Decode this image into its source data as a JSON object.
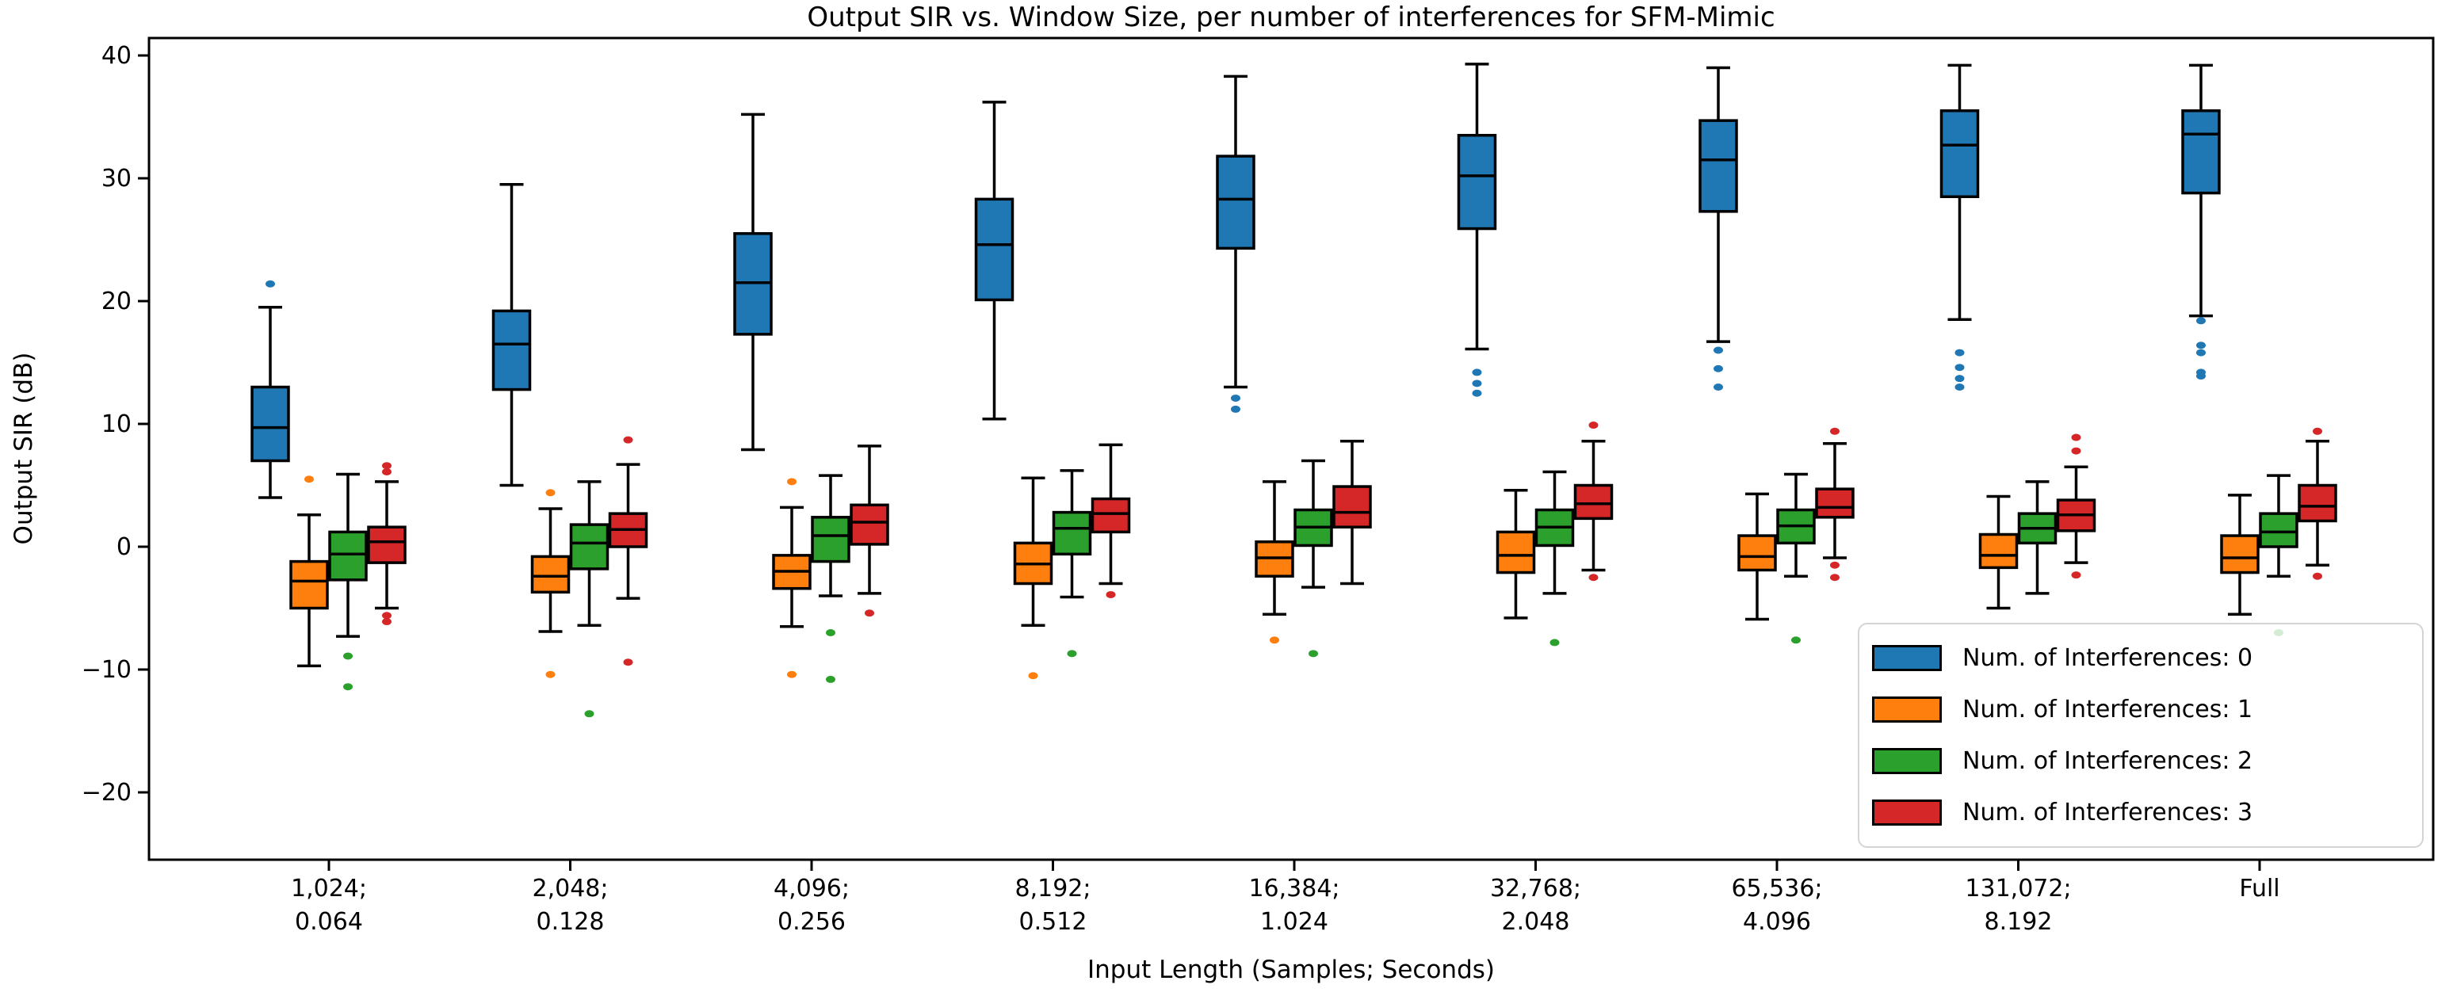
{
  "chart_data": {
    "type": "box",
    "title": "Output SIR vs. Window Size, per number of interferences for SFM-Mimic",
    "xlabel": "Input Length (Samples; Seconds)",
    "ylabel": "Output SIR (dB)",
    "ylim": [
      -25.5,
      41.4
    ],
    "grid": false,
    "legend_position": "lower right",
    "yticks": [
      {
        "value": 40,
        "label": "40"
      },
      {
        "value": 30,
        "label": "30"
      },
      {
        "value": 20,
        "label": "20"
      },
      {
        "value": 10,
        "label": "10"
      },
      {
        "value": 0,
        "label": "0"
      },
      {
        "value": -10,
        "label": "−10"
      },
      {
        "value": -20,
        "label": "−20"
      }
    ],
    "categories": [
      {
        "line1": "1,024;",
        "line2": "0.064"
      },
      {
        "line1": "2,048;",
        "line2": "0.128"
      },
      {
        "line1": "4,096;",
        "line2": "0.256"
      },
      {
        "line1": "8,192;",
        "line2": "0.512"
      },
      {
        "line1": "16,384;",
        "line2": "1.024"
      },
      {
        "line1": "32,768;",
        "line2": "2.048"
      },
      {
        "line1": "65,536;",
        "line2": "4.096"
      },
      {
        "line1": "131,072;",
        "line2": "8.192"
      },
      {
        "line1": "Full",
        "line2": ""
      }
    ],
    "series": [
      {
        "name": "Num. of Interferences: 0",
        "color": "#1f77b4"
      },
      {
        "name": "Num. of Interferences: 1",
        "color": "#ff7f0e"
      },
      {
        "name": "Num. of Interferences: 2",
        "color": "#2ca02c"
      },
      {
        "name": "Num. of Interferences: 3",
        "color": "#d62728"
      }
    ],
    "boxes": [
      [
        {
          "whislo": 4.0,
          "q1": 7.0,
          "med": 9.7,
          "q3": 13.0,
          "whishi": 19.5,
          "fliers": [
            21.4
          ]
        },
        {
          "whislo": -9.7,
          "q1": -5.0,
          "med": -2.8,
          "q3": -1.2,
          "whishi": 2.6,
          "fliers": [
            5.5
          ]
        },
        {
          "whislo": -7.3,
          "q1": -2.7,
          "med": -0.6,
          "q3": 1.2,
          "whishi": 5.9,
          "fliers": [
            -8.9,
            -11.4
          ]
        },
        {
          "whislo": -5.0,
          "q1": -1.3,
          "med": 0.4,
          "q3": 1.6,
          "whishi": 5.3,
          "fliers": [
            6.6,
            6.1,
            -5.6,
            -6.1
          ]
        }
      ],
      [
        {
          "whislo": 5.0,
          "q1": 12.8,
          "med": 16.5,
          "q3": 19.2,
          "whishi": 29.5,
          "fliers": []
        },
        {
          "whislo": -6.9,
          "q1": -3.7,
          "med": -2.4,
          "q3": -0.8,
          "whishi": 3.1,
          "fliers": [
            4.4,
            -10.4
          ]
        },
        {
          "whislo": -6.4,
          "q1": -1.8,
          "med": 0.3,
          "q3": 1.8,
          "whishi": 5.3,
          "fliers": [
            -13.6
          ]
        },
        {
          "whislo": -4.2,
          "q1": 0.0,
          "med": 1.4,
          "q3": 2.7,
          "whishi": 6.7,
          "fliers": [
            8.7,
            -9.4
          ]
        }
      ],
      [
        {
          "whislo": 7.9,
          "q1": 17.3,
          "med": 21.5,
          "q3": 25.5,
          "whishi": 35.2,
          "fliers": []
        },
        {
          "whislo": -6.5,
          "q1": -3.4,
          "med": -2.0,
          "q3": -0.7,
          "whishi": 3.2,
          "fliers": [
            5.3,
            -10.4
          ]
        },
        {
          "whislo": -4.0,
          "q1": -1.2,
          "med": 0.9,
          "q3": 2.4,
          "whishi": 5.8,
          "fliers": [
            -7.0,
            -10.8
          ]
        },
        {
          "whislo": -3.8,
          "q1": 0.2,
          "med": 2.0,
          "q3": 3.4,
          "whishi": 8.2,
          "fliers": [
            -5.4
          ]
        }
      ],
      [
        {
          "whislo": 10.4,
          "q1": 20.1,
          "med": 24.6,
          "q3": 28.3,
          "whishi": 36.2,
          "fliers": []
        },
        {
          "whislo": -6.4,
          "q1": -3.0,
          "med": -1.4,
          "q3": 0.3,
          "whishi": 5.6,
          "fliers": [
            -10.5
          ]
        },
        {
          "whislo": -4.1,
          "q1": -0.6,
          "med": 1.5,
          "q3": 2.8,
          "whishi": 6.2,
          "fliers": [
            -8.7
          ]
        },
        {
          "whislo": -3.0,
          "q1": 1.2,
          "med": 2.7,
          "q3": 3.9,
          "whishi": 8.3,
          "fliers": [
            -3.9
          ]
        }
      ],
      [
        {
          "whislo": 13.0,
          "q1": 24.3,
          "med": 28.3,
          "q3": 31.8,
          "whishi": 38.3,
          "fliers": [
            12.1,
            11.2
          ]
        },
        {
          "whislo": -5.5,
          "q1": -2.4,
          "med": -0.9,
          "q3": 0.4,
          "whishi": 5.3,
          "fliers": [
            -7.6
          ]
        },
        {
          "whislo": -3.3,
          "q1": 0.1,
          "med": 1.6,
          "q3": 3.0,
          "whishi": 7.0,
          "fliers": [
            -8.7
          ]
        },
        {
          "whislo": -3.0,
          "q1": 1.6,
          "med": 2.8,
          "q3": 4.9,
          "whishi": 8.6,
          "fliers": []
        }
      ],
      [
        {
          "whislo": 16.1,
          "q1": 25.9,
          "med": 30.2,
          "q3": 33.5,
          "whishi": 39.3,
          "fliers": [
            14.2,
            13.3,
            12.5
          ]
        },
        {
          "whislo": -5.8,
          "q1": -2.1,
          "med": -0.7,
          "q3": 1.2,
          "whishi": 4.6,
          "fliers": []
        },
        {
          "whislo": -3.8,
          "q1": 0.1,
          "med": 1.6,
          "q3": 3.0,
          "whishi": 6.1,
          "fliers": [
            -7.8
          ]
        },
        {
          "whislo": -1.9,
          "q1": 2.3,
          "med": 3.5,
          "q3": 5.0,
          "whishi": 8.6,
          "fliers": [
            9.9,
            -2.5
          ]
        }
      ],
      [
        {
          "whislo": 16.7,
          "q1": 27.3,
          "med": 31.5,
          "q3": 34.7,
          "whishi": 39.0,
          "fliers": [
            16.0,
            14.5,
            13.0
          ]
        },
        {
          "whislo": -5.9,
          "q1": -1.9,
          "med": -0.8,
          "q3": 0.9,
          "whishi": 4.3,
          "fliers": []
        },
        {
          "whislo": -2.4,
          "q1": 0.3,
          "med": 1.7,
          "q3": 3.0,
          "whishi": 5.9,
          "fliers": [
            -7.6
          ]
        },
        {
          "whislo": -0.9,
          "q1": 2.4,
          "med": 3.2,
          "q3": 4.7,
          "whishi": 8.4,
          "fliers": [
            9.4,
            -1.5,
            -2.5
          ]
        }
      ],
      [
        {
          "whislo": 18.5,
          "q1": 28.5,
          "med": 32.7,
          "q3": 35.5,
          "whishi": 39.2,
          "fliers": [
            15.8,
            14.6,
            13.7,
            13.0
          ]
        },
        {
          "whislo": -5.0,
          "q1": -1.7,
          "med": -0.7,
          "q3": 1.0,
          "whishi": 4.1,
          "fliers": []
        },
        {
          "whislo": -3.8,
          "q1": 0.3,
          "med": 1.5,
          "q3": 2.7,
          "whishi": 5.3,
          "fliers": []
        },
        {
          "whislo": -1.3,
          "q1": 1.3,
          "med": 2.6,
          "q3": 3.8,
          "whishi": 6.5,
          "fliers": [
            8.9,
            7.8,
            -2.3
          ]
        }
      ],
      [
        {
          "whislo": 18.8,
          "q1": 28.8,
          "med": 33.6,
          "q3": 35.5,
          "whishi": 39.2,
          "fliers": [
            18.4,
            16.4,
            15.8,
            14.2,
            13.9
          ]
        },
        {
          "whislo": -5.5,
          "q1": -2.1,
          "med": -0.9,
          "q3": 0.9,
          "whishi": 4.2,
          "fliers": []
        },
        {
          "whislo": -2.4,
          "q1": 0.0,
          "med": 1.2,
          "q3": 2.7,
          "whishi": 5.8,
          "fliers": [
            -7.0
          ]
        },
        {
          "whislo": -1.5,
          "q1": 2.1,
          "med": 3.3,
          "q3": 5.0,
          "whishi": 8.6,
          "fliers": [
            9.4,
            -2.4
          ]
        }
      ]
    ]
  }
}
